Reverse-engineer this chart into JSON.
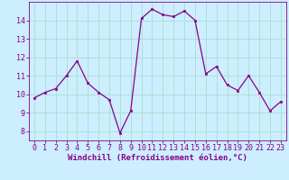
{
  "x": [
    0,
    1,
    2,
    3,
    4,
    5,
    6,
    7,
    8,
    9,
    10,
    11,
    12,
    13,
    14,
    15,
    16,
    17,
    18,
    19,
    20,
    21,
    22,
    23
  ],
  "y": [
    9.8,
    10.1,
    10.3,
    11.0,
    11.8,
    10.6,
    10.1,
    9.7,
    7.9,
    9.1,
    14.1,
    14.6,
    14.3,
    14.2,
    14.5,
    14.0,
    11.1,
    11.5,
    10.5,
    10.2,
    11.0,
    10.1,
    9.1,
    9.6
  ],
  "line_color": "#880088",
  "marker_color": "#880088",
  "bg_color": "#cceeff",
  "grid_color": "#aaddcc",
  "xlabel": "Windchill (Refroidissement éolien,°C)",
  "xlim": [
    -0.5,
    23.5
  ],
  "ylim": [
    7.5,
    15.0
  ],
  "yticks": [
    8,
    9,
    10,
    11,
    12,
    13,
    14
  ],
  "xticks": [
    0,
    1,
    2,
    3,
    4,
    5,
    6,
    7,
    8,
    9,
    10,
    11,
    12,
    13,
    14,
    15,
    16,
    17,
    18,
    19,
    20,
    21,
    22,
    23
  ],
  "tick_color": "#880088",
  "label_fontsize": 6.5,
  "tick_fontsize": 6.0
}
